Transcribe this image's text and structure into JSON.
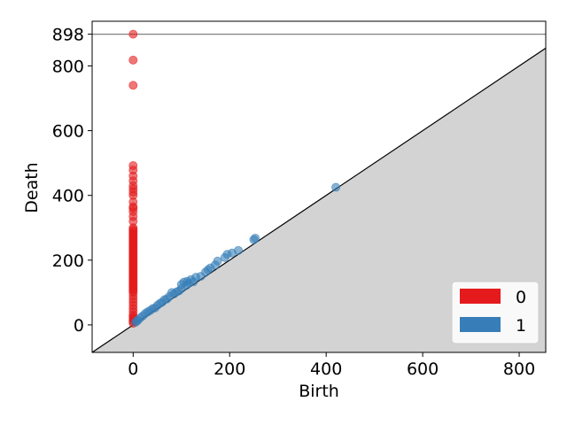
{
  "chart_data": {
    "type": "scatter",
    "title": "",
    "xlabel": "Birth",
    "ylabel": "Death",
    "xlim": [
      -85,
      855
    ],
    "ylim": [
      -85,
      938
    ],
    "xticks": [
      0,
      200,
      400,
      600,
      800
    ],
    "yticks": [
      0,
      200,
      400,
      600,
      800,
      898
    ],
    "infinity_line": 898,
    "diagonal": true,
    "grid": false,
    "legend_position": "bottom-right",
    "colors": {
      "h0": "#e41a1c",
      "h1": "#377eb8",
      "diagonal_fill": "#d3d3d3",
      "infinity_line": "#808080"
    },
    "series": [
      {
        "name": "0",
        "x": [
          0,
          0,
          0,
          0,
          0,
          0,
          0,
          0,
          0,
          0,
          0,
          0,
          0,
          0,
          0,
          0,
          0,
          0,
          0,
          0,
          0,
          0,
          0,
          0,
          0,
          0,
          0,
          0,
          0,
          0,
          0,
          0,
          0,
          0,
          0,
          0,
          0,
          0,
          0,
          0,
          0,
          0,
          0,
          0,
          0,
          0,
          0,
          0,
          0,
          0,
          0,
          0,
          0,
          0,
          0,
          0,
          0,
          0,
          0,
          0,
          0,
          0,
          0,
          0,
          0,
          0,
          0,
          0,
          0,
          0
        ],
        "y": [
          898,
          818,
          740,
          492,
          478,
          460,
          445,
          430,
          420,
          410,
          400,
          380,
          365,
          360,
          350,
          335,
          320,
          300,
          295,
          290,
          285,
          280,
          275,
          270,
          265,
          260,
          255,
          250,
          245,
          240,
          235,
          230,
          225,
          220,
          215,
          210,
          205,
          200,
          195,
          190,
          185,
          180,
          175,
          170,
          165,
          160,
          155,
          150,
          145,
          140,
          135,
          130,
          125,
          120,
          115,
          110,
          105,
          100,
          90,
          80,
          70,
          60,
          50,
          40,
          30,
          25,
          20,
          15,
          10,
          5
        ]
      },
      {
        "name": "1",
        "x": [
          420,
          253,
          250,
          218,
          205,
          195,
          190,
          175,
          170,
          160,
          155,
          150,
          140,
          130,
          125,
          120,
          115,
          112,
          110,
          105,
          100,
          100,
          95,
          90,
          85,
          80,
          75,
          70,
          65,
          60,
          55,
          50,
          45,
          40,
          35,
          30,
          25,
          20,
          15,
          10,
          8,
          5
        ],
        "y": [
          425,
          268,
          263,
          230,
          222,
          218,
          208,
          197,
          185,
          176,
          170,
          163,
          150,
          147,
          133,
          140,
          128,
          135,
          122,
          132,
          112,
          125,
          105,
          102,
          96,
          100,
          88,
          80,
          78,
          70,
          66,
          60,
          52,
          50,
          44,
          40,
          35,
          28,
          22,
          15,
          12,
          8
        ]
      }
    ]
  }
}
